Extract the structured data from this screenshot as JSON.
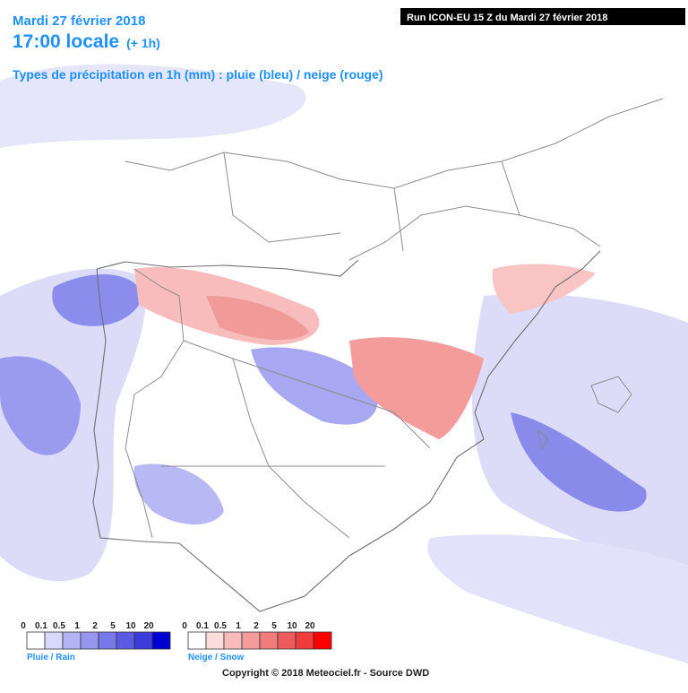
{
  "header": {
    "date": "Mardi 27 février 2018",
    "time": "17:00 locale",
    "offset": "(+ 1h)",
    "subtitle": "Types de précipitation en 1h (mm) : pluie (bleu) / neige (rouge)"
  },
  "run_label": "Run ICON-EU 15 Z du Mardi 27 février 2018",
  "legends": [
    {
      "ticks": [
        "0",
        "0.1",
        "0.5",
        "1",
        "2",
        "5",
        "10",
        "20"
      ],
      "title": "Pluie / Rain",
      "colors": [
        "#ffffff",
        "#d8d8fa",
        "#b4b4f4",
        "#9696ee",
        "#7878e8",
        "#5a5ae2",
        "#3c3cdc",
        "#0000d2"
      ]
    },
    {
      "ticks": [
        "0",
        "0.1",
        "0.5",
        "1",
        "2",
        "5",
        "10",
        "20"
      ],
      "title": "Neige / Snow",
      "colors": [
        "#ffffff",
        "#fadcdc",
        "#f8bcbc",
        "#f49c9c",
        "#f07c7c",
        "#ec5c5c",
        "#f03c3c",
        "#ff0000"
      ]
    }
  ],
  "copyright": "Copyright © 2018 Meteociel.fr - Source DWD"
}
